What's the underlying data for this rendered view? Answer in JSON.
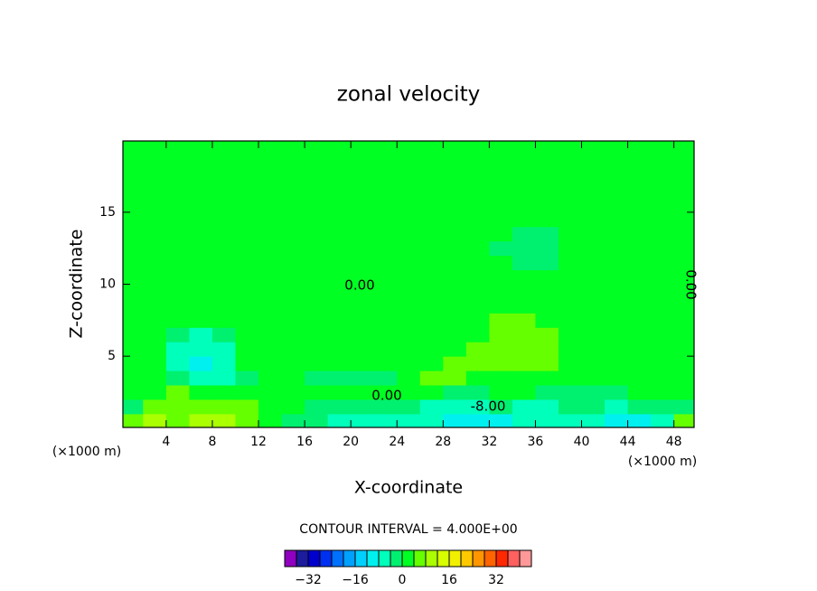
{
  "chart_data": {
    "type": "contour",
    "title": "zonal velocity",
    "x_label": "X-coordinate",
    "y_label": "Z-coordinate",
    "x_unit_label": "(×1000 m)",
    "y_unit_label": "(×1000 m)",
    "interval_label": "CONTOUR INTERVAL = 4.000E+00",
    "contour_labels": [
      "0.00",
      "0.00",
      "-8.00",
      "0.00"
    ],
    "xlim": [
      0.25,
      49.75
    ],
    "ylim": [
      0.05,
      19.95
    ],
    "xticks": [
      4,
      8,
      12,
      16,
      20,
      24,
      28,
      32,
      36,
      40,
      44,
      48
    ],
    "yticks": [
      5,
      10,
      15
    ],
    "x": [
      1,
      3,
      5,
      7,
      9,
      11,
      13,
      15,
      17,
      19,
      21,
      23,
      25,
      27,
      29,
      31,
      33,
      35,
      37,
      39,
      41,
      43,
      45,
      47,
      49
    ],
    "y": [
      0.5,
      1.5,
      2.5,
      3.5,
      4.5,
      5.5,
      6.5,
      7.5,
      8.5,
      9.5,
      10.5,
      11.5,
      12.5,
      13.5,
      14.5,
      15.5,
      16.5,
      17.5,
      18.5,
      19.5
    ],
    "z": [
      [
        6,
        10,
        6,
        10,
        10,
        6,
        2,
        -2,
        -2,
        -6,
        -6,
        -6,
        -6,
        -6,
        -10,
        -10,
        -10,
        -6,
        -6,
        -6,
        -6,
        -10,
        -10,
        -6,
        6
      ],
      [
        -2,
        6,
        6,
        6,
        6,
        6,
        2,
        2,
        -2,
        -2,
        -2,
        -2,
        -2,
        -6,
        -6,
        -6,
        -2,
        -6,
        -6,
        -2,
        -2,
        -6,
        -2,
        -2,
        -2
      ],
      [
        2,
        2,
        6,
        2,
        2,
        2,
        2,
        2,
        2,
        2,
        2,
        2,
        2,
        2,
        -2,
        -2,
        2,
        2,
        -2,
        -2,
        -2,
        -2,
        2,
        2,
        2
      ],
      [
        2,
        2,
        -2,
        -6,
        -6,
        -2,
        2,
        2,
        -2,
        -2,
        -2,
        -2,
        2,
        6,
        6,
        2,
        2,
        2,
        2,
        2,
        2,
        2,
        2,
        2,
        2
      ],
      [
        2,
        2,
        -6,
        -10,
        -6,
        2,
        2,
        2,
        2,
        2,
        2,
        2,
        2,
        2,
        6,
        6,
        6,
        6,
        6,
        2,
        2,
        2,
        2,
        2,
        2
      ],
      [
        2,
        2,
        -6,
        -6,
        -6,
        2,
        2,
        2,
        2,
        2,
        2,
        2,
        2,
        2,
        2,
        6,
        6,
        6,
        6,
        2,
        2,
        2,
        2,
        2,
        2
      ],
      [
        2,
        2,
        -2,
        -6,
        -2,
        2,
        2,
        2,
        2,
        2,
        2,
        2,
        2,
        2,
        2,
        2,
        6,
        6,
        6,
        2,
        2,
        2,
        2,
        2,
        2
      ],
      [
        2,
        2,
        2,
        2,
        2,
        2,
        2,
        2,
        2,
        2,
        2,
        2,
        2,
        2,
        2,
        2,
        6,
        6,
        2,
        2,
        2,
        2,
        2,
        2,
        2
      ],
      [
        2,
        2,
        2,
        2,
        2,
        2,
        2,
        2,
        2,
        2,
        2,
        2,
        2,
        2,
        2,
        2,
        2,
        2,
        2,
        2,
        2,
        2,
        2,
        2,
        2
      ],
      [
        2,
        2,
        2,
        2,
        2,
        2,
        2,
        2,
        2,
        2,
        2,
        2,
        2,
        2,
        2,
        2,
        2,
        2,
        2,
        2,
        2,
        2,
        2,
        2,
        2
      ],
      [
        2,
        2,
        2,
        2,
        2,
        2,
        2,
        2,
        2,
        2,
        2,
        2,
        2,
        2,
        2,
        2,
        2,
        2,
        2,
        2,
        2,
        2,
        2,
        2,
        2
      ],
      [
        2,
        2,
        2,
        2,
        2,
        2,
        2,
        2,
        2,
        2,
        2,
        2,
        2,
        2,
        2,
        2,
        2,
        -2,
        -2,
        2,
        2,
        2,
        2,
        2,
        2
      ],
      [
        2,
        2,
        2,
        2,
        2,
        2,
        2,
        2,
        2,
        2,
        2,
        2,
        2,
        2,
        2,
        2,
        -2,
        -2,
        -2,
        2,
        2,
        2,
        2,
        2,
        2
      ],
      [
        2,
        2,
        2,
        2,
        2,
        2,
        2,
        2,
        2,
        2,
        2,
        2,
        2,
        2,
        2,
        2,
        2,
        -2,
        -2,
        2,
        2,
        2,
        2,
        2,
        2
      ],
      [
        2,
        2,
        2,
        2,
        2,
        2,
        2,
        2,
        2,
        2,
        2,
        2,
        2,
        2,
        2,
        2,
        2,
        2,
        2,
        2,
        2,
        2,
        2,
        2,
        2
      ],
      [
        2,
        2,
        2,
        2,
        2,
        2,
        2,
        2,
        2,
        2,
        2,
        2,
        2,
        2,
        2,
        2,
        2,
        2,
        2,
        2,
        2,
        2,
        2,
        2,
        2
      ],
      [
        2,
        2,
        2,
        2,
        2,
        2,
        2,
        2,
        2,
        2,
        2,
        2,
        2,
        2,
        2,
        2,
        2,
        2,
        2,
        2,
        2,
        2,
        2,
        2,
        2
      ],
      [
        2,
        2,
        2,
        2,
        2,
        2,
        2,
        2,
        2,
        2,
        2,
        2,
        2,
        2,
        2,
        2,
        2,
        2,
        2,
        2,
        2,
        2,
        2,
        2,
        2
      ],
      [
        2,
        2,
        2,
        2,
        2,
        2,
        2,
        2,
        2,
        2,
        2,
        2,
        2,
        2,
        2,
        2,
        2,
        2,
        2,
        2,
        2,
        2,
        2,
        2,
        2
      ],
      [
        2,
        2,
        2,
        2,
        2,
        2,
        2,
        2,
        2,
        2,
        2,
        2,
        2,
        2,
        2,
        2,
        2,
        2,
        2,
        2,
        2,
        2,
        2,
        2,
        2
      ]
    ],
    "colorbar": {
      "levels": [
        -40,
        -36,
        -32,
        -28,
        -24,
        -20,
        -16,
        -12,
        -8,
        -4,
        0,
        4,
        8,
        12,
        16,
        20,
        24,
        28,
        32,
        36,
        40,
        44
      ],
      "colors": [
        "#9000c0",
        "#1c1c9c",
        "#0000cd",
        "#0030f0",
        "#0070ff",
        "#00a0ff",
        "#00d0ff",
        "#00f0f0",
        "#00ffbb",
        "#00f070",
        "#00ff22",
        "#66ff00",
        "#aaff00",
        "#d8ff00",
        "#f0f000",
        "#ffc800",
        "#ff9600",
        "#ff6400",
        "#ff2800",
        "#ff6060",
        "#ff9898"
      ],
      "ticks": [
        {
          "value": -32,
          "label": "−32"
        },
        {
          "value": -16,
          "label": "−16"
        },
        0,
        16,
        32
      ]
    }
  }
}
